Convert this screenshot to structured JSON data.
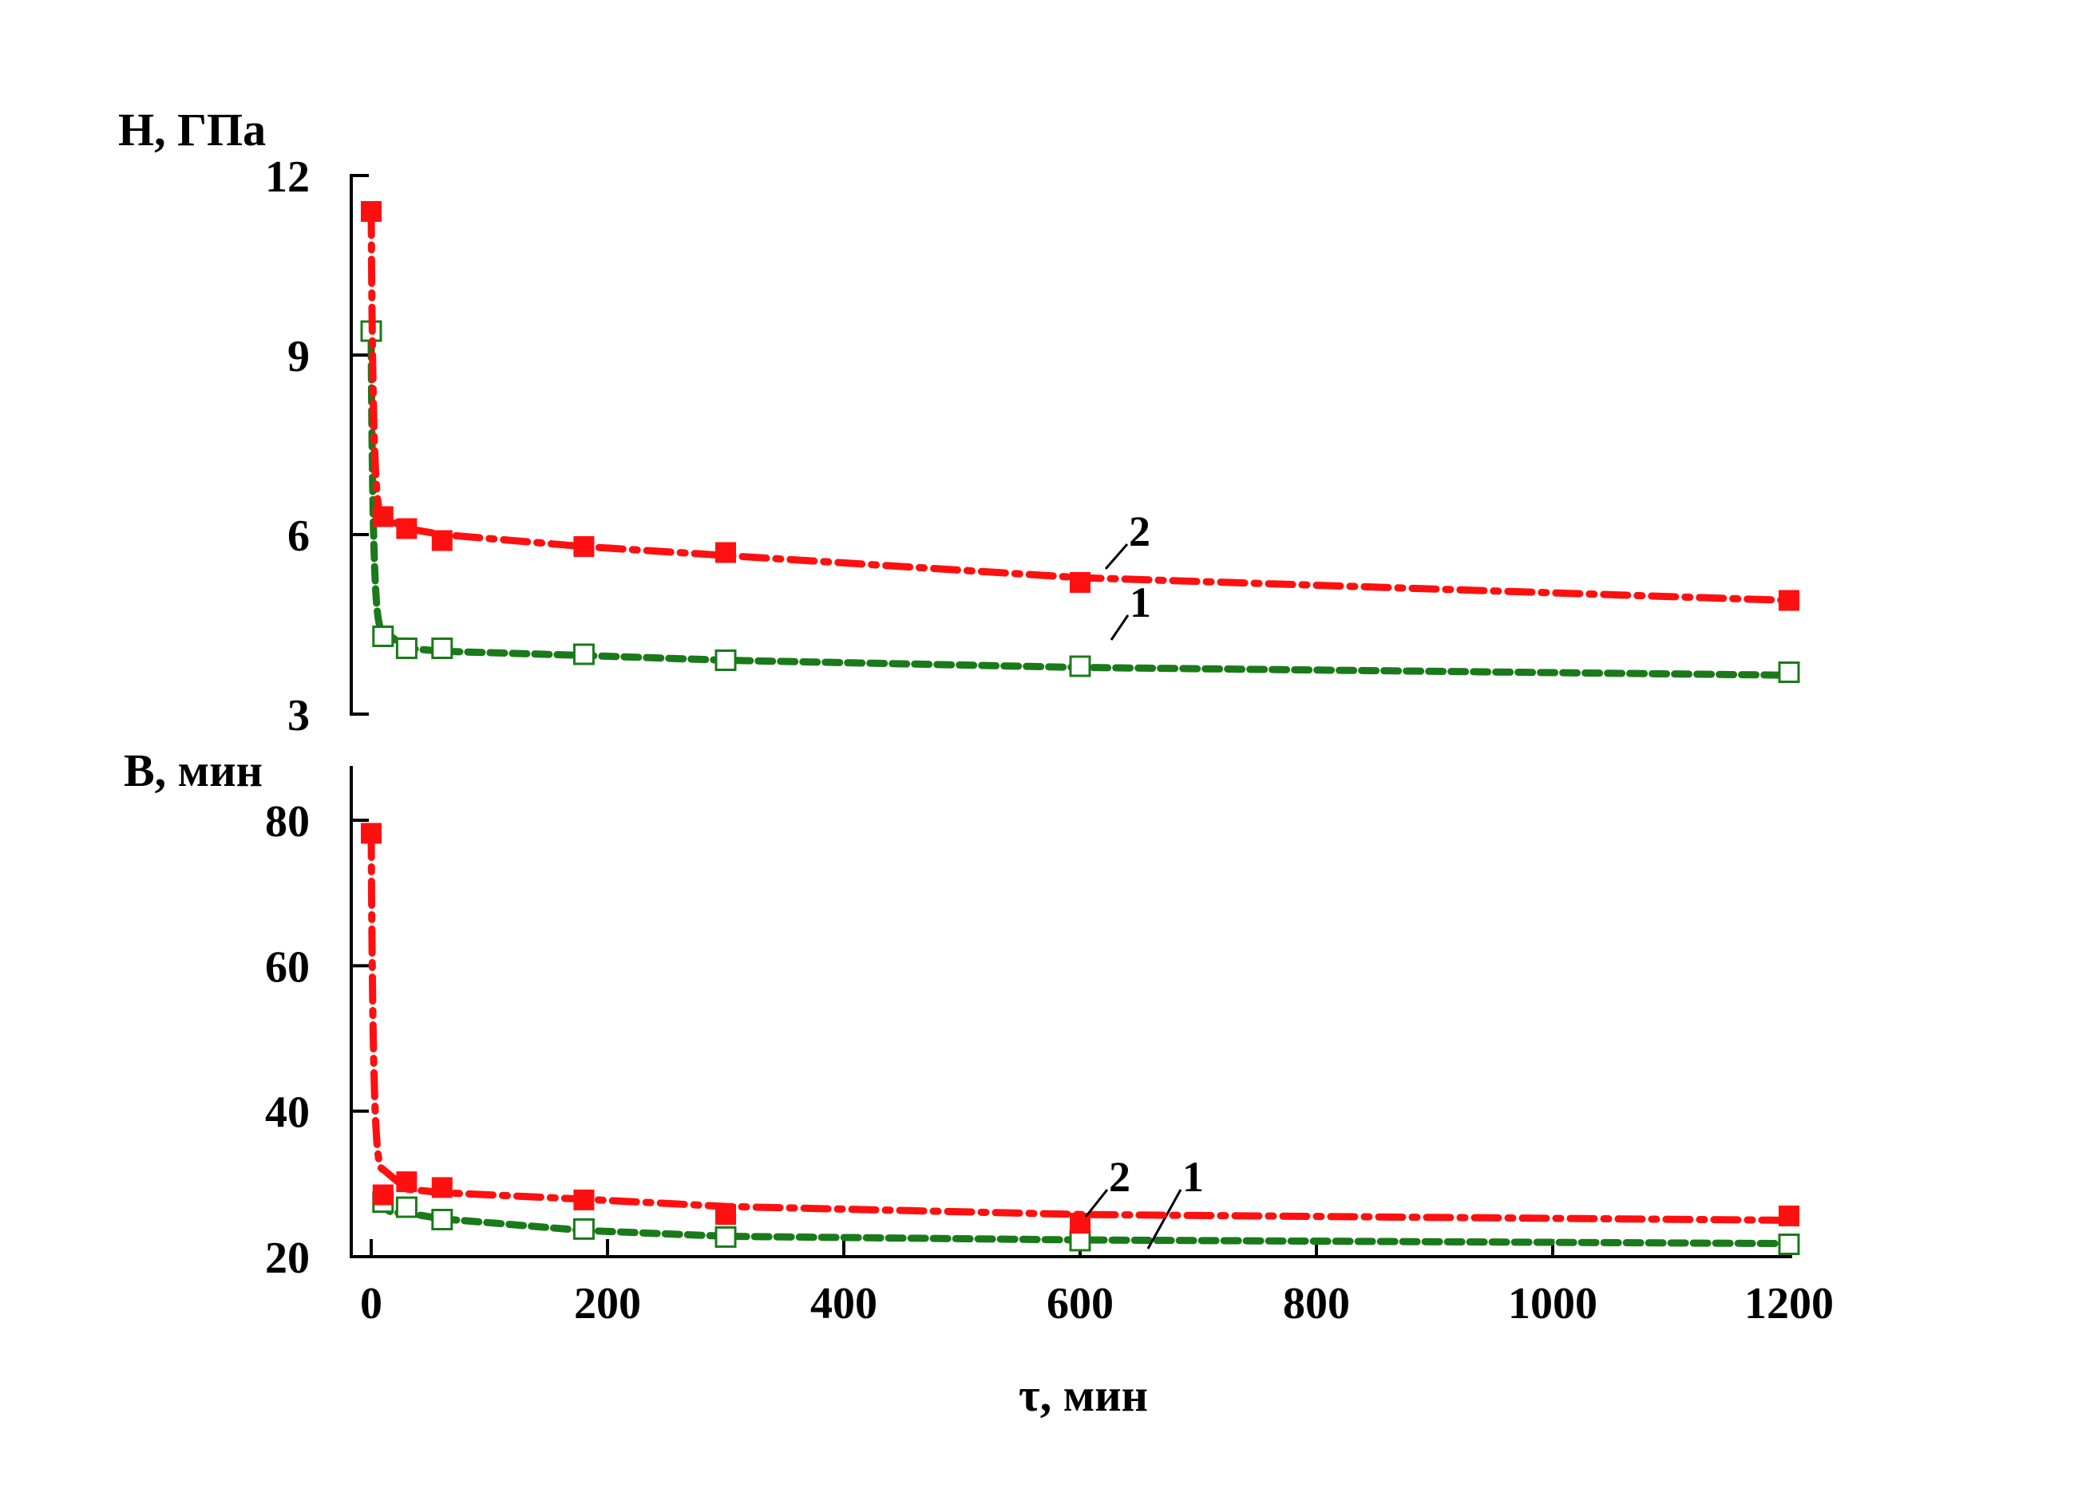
{
  "chart_data": [
    {
      "type": "line",
      "ylabel": "H, ГПа",
      "xlabel": "",
      "ylim": [
        3,
        12
      ],
      "yticks": [
        3,
        6,
        9,
        12
      ],
      "xlim": [
        -10,
        1200
      ],
      "series": [
        {
          "name": "1",
          "color": "#1a7a1a",
          "marker": "open-square",
          "line_style": "dashed",
          "x": [
            0,
            10,
            30,
            60,
            180,
            300,
            600,
            1200
          ],
          "y": [
            9.4,
            4.3,
            4.1,
            4.1,
            4.0,
            3.9,
            3.8,
            3.7
          ],
          "fit_y": [
            9.2,
            4.4,
            4.1,
            4.05,
            3.98,
            3.9,
            3.78,
            3.65
          ]
        },
        {
          "name": "2",
          "color": "#ff1010",
          "marker": "filled-square",
          "line_style": "dash-dot",
          "x": [
            0,
            10,
            30,
            60,
            180,
            300,
            600,
            1200
          ],
          "y": [
            11.4,
            6.3,
            6.1,
            5.9,
            5.8,
            5.7,
            5.2,
            4.9
          ],
          "fit_y": [
            11.4,
            6.3,
            6.1,
            6.0,
            5.8,
            5.65,
            5.28,
            4.9
          ]
        }
      ]
    },
    {
      "type": "line",
      "ylabel": "B, мин",
      "xlabel": "τ, мин",
      "ylim": [
        20,
        85
      ],
      "yticks": [
        20,
        40,
        60,
        80
      ],
      "xlim": [
        -10,
        1200
      ],
      "xticks": [
        0,
        200,
        400,
        600,
        800,
        1000,
        1200
      ],
      "series": [
        {
          "name": "1",
          "color": "#1a7a1a",
          "marker": "open-square",
          "line_style": "dashed",
          "x": [
            10,
            30,
            60,
            180,
            300,
            600,
            1200
          ],
          "y": [
            27.5,
            26.8,
            25.1,
            23.8,
            22.7,
            22.2,
            21.7
          ],
          "fit_y": [
            27.8,
            26.0,
            25.2,
            23.6,
            22.8,
            22.3,
            21.8
          ]
        },
        {
          "name": "2",
          "color": "#ff1010",
          "marker": "filled-square",
          "line_style": "dash-dot",
          "x": [
            0,
            10,
            30,
            60,
            180,
            300,
            600,
            1200
          ],
          "y": [
            78.2,
            28.5,
            30.3,
            29.5,
            27.8,
            25.8,
            24.6,
            25.6
          ],
          "fit_y": [
            78.2,
            32.0,
            29.3,
            28.8,
            27.9,
            26.9,
            25.8,
            25.0
          ]
        }
      ]
    }
  ]
}
